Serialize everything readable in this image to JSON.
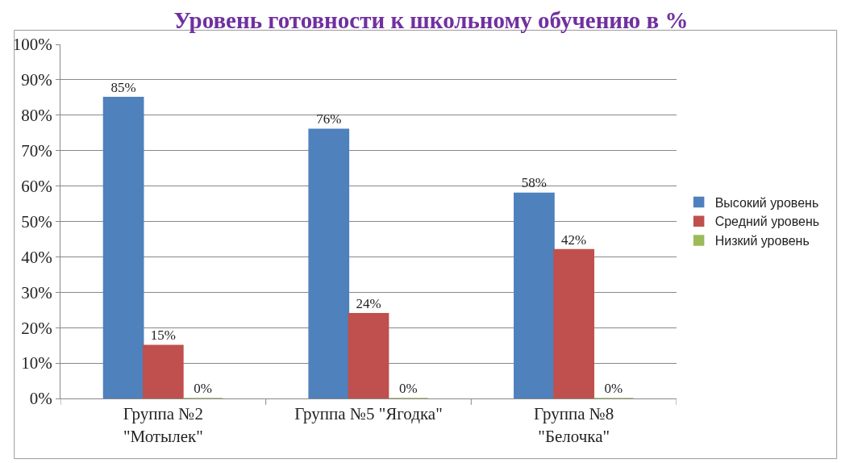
{
  "chart_data": {
    "type": "bar",
    "title": "Уровень готовности к школьному обучению в %",
    "categories": [
      "Группа №2\n\"Мотылек\"",
      "Группа №5 \"Ягодка\"",
      "Группа №8\n\"Белочка\""
    ],
    "series": [
      {
        "name": "Высокий уровень",
        "color": "#4f81bd",
        "values": [
          85,
          76,
          58
        ],
        "value_labels": [
          "85%",
          "76%",
          "58%"
        ]
      },
      {
        "name": "Средний уровень",
        "color": "#c0504d",
        "values": [
          15,
          24,
          42
        ],
        "value_labels": [
          "15%",
          "24%",
          "42%"
        ]
      },
      {
        "name": "Низкий уровень",
        "color": "#9bbb59",
        "values": [
          0,
          0,
          0
        ],
        "value_labels": [
          "0%",
          "0%",
          "0%"
        ]
      }
    ],
    "ylim": [
      0,
      100
    ],
    "yticks": [
      {
        "value": 0,
        "label": "0%"
      },
      {
        "value": 10,
        "label": "10%"
      },
      {
        "value": 20,
        "label": "20%"
      },
      {
        "value": 30,
        "label": "30%"
      },
      {
        "value": 40,
        "label": "40%"
      },
      {
        "value": 50,
        "label": "50%"
      },
      {
        "value": 60,
        "label": "60%"
      },
      {
        "value": 70,
        "label": "70%"
      },
      {
        "value": 80,
        "label": "80%"
      },
      {
        "value": 90,
        "label": "90%"
      },
      {
        "value": 100,
        "label": "100%"
      }
    ],
    "grid": "y",
    "legend": "right"
  }
}
